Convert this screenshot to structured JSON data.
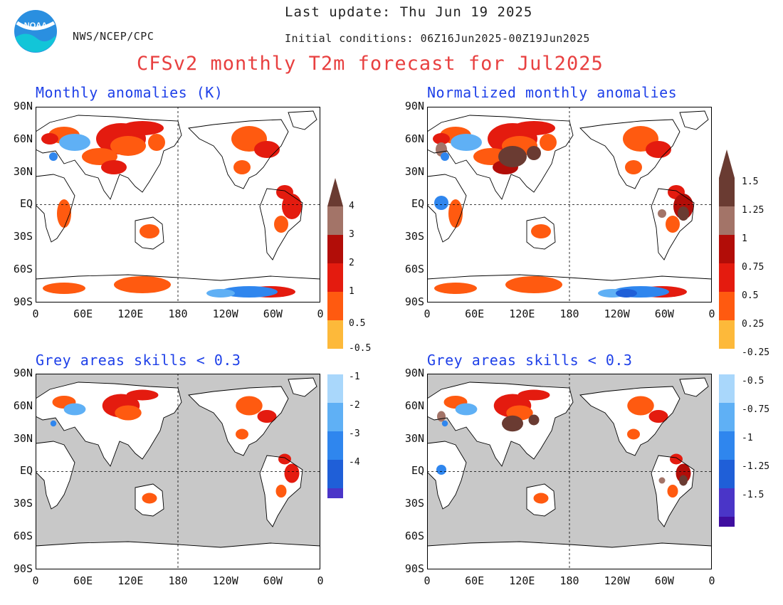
{
  "header": {
    "last_update": "Last update: Thu Jun 19 2025",
    "agency": "NWS/NCEP/CPC",
    "initial_conditions": "Initial conditions: 06Z16Jun2025-00Z19Jun2025",
    "title": "CFSv2 monthly T2m forecast for Jul2025",
    "logo_text": "NOAA"
  },
  "panels": [
    {
      "id": "raw",
      "title": "Monthly anomalies (K)",
      "skill_mask": false
    },
    {
      "id": "norm",
      "title": "Normalized monthly anomalies",
      "skill_mask": false
    },
    {
      "id": "raw_masked",
      "title": "Grey areas skills < 0.3",
      "skill_mask": true
    },
    {
      "id": "norm_masked",
      "title": "Grey areas skills < 0.3",
      "skill_mask": true
    }
  ],
  "axes": {
    "lat_labels": [
      "90N",
      "60N",
      "30N",
      "EQ",
      "30S",
      "60S",
      "90S"
    ],
    "lon_labels": [
      "0",
      "60E",
      "120E",
      "180",
      "120W",
      "60W",
      "0"
    ]
  },
  "colorbars": {
    "raw": {
      "labels": [
        "4",
        "3",
        "2",
        "1",
        "0.5",
        "-0.5",
        "-1",
        "-2",
        "-3",
        "-4"
      ]
    },
    "norm": {
      "labels": [
        "1.5",
        "1.25",
        "1",
        "0.75",
        "0.5",
        "0.25",
        "-0.25",
        "-0.5",
        "-0.75",
        "-1",
        "-1.25",
        "-1.5"
      ]
    }
  },
  "colors": {
    "title": "#e84040",
    "panel_title": "#1e40e8",
    "grey_mask": "#c8c8c8",
    "scale": [
      "#3f0ea0",
      "#4a35c8",
      "#1f5fd8",
      "#2f86ee",
      "#5fb0f5",
      "#a9d7fb",
      "#ffffff",
      "#fdb93a",
      "#ff5a10",
      "#e41b0f",
      "#b20d08",
      "#a37468",
      "#6a3b32"
    ]
  }
}
